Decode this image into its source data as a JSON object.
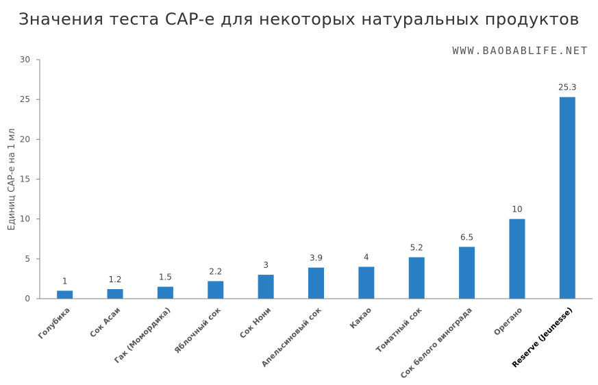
{
  "title": "Значения теста CAP-e для некоторых натуральных продуктов",
  "watermark": "WWW.BAOBABLIFE.NET",
  "colors": {
    "bar": "#2a7fc5",
    "axis": "#7f7f7f",
    "gridline": "#d9d9d9"
  },
  "chart_data": {
    "type": "bar",
    "title": "Значения теста CAP-e для некоторых натуральных продуктов",
    "xlabel": "",
    "ylabel": "Единиц CAP-e на 1 мл",
    "ylim": [
      0,
      30
    ],
    "yticks": [
      "0",
      "5",
      "10",
      "15",
      "20",
      "25",
      "30"
    ],
    "grid": false,
    "categories": [
      "Голубика",
      "Сок Асаи",
      "Гак (Момордика)",
      "Яблочный сок",
      "Сок Нони",
      "Апельсиновый сок",
      "Какао",
      "Томатный сок",
      "Сок белого винограда",
      "Орегано",
      "Reserve (Jeunesse)"
    ],
    "values": [
      1,
      1.2,
      1.5,
      2.2,
      3,
      3.9,
      4,
      5.2,
      6.5,
      10,
      25.3
    ],
    "data_labels": [
      "1",
      "1.2",
      "1.5",
      "2.2",
      "3",
      "3.9",
      "4",
      "5.2",
      "6.5",
      "10",
      "25.3"
    ]
  }
}
